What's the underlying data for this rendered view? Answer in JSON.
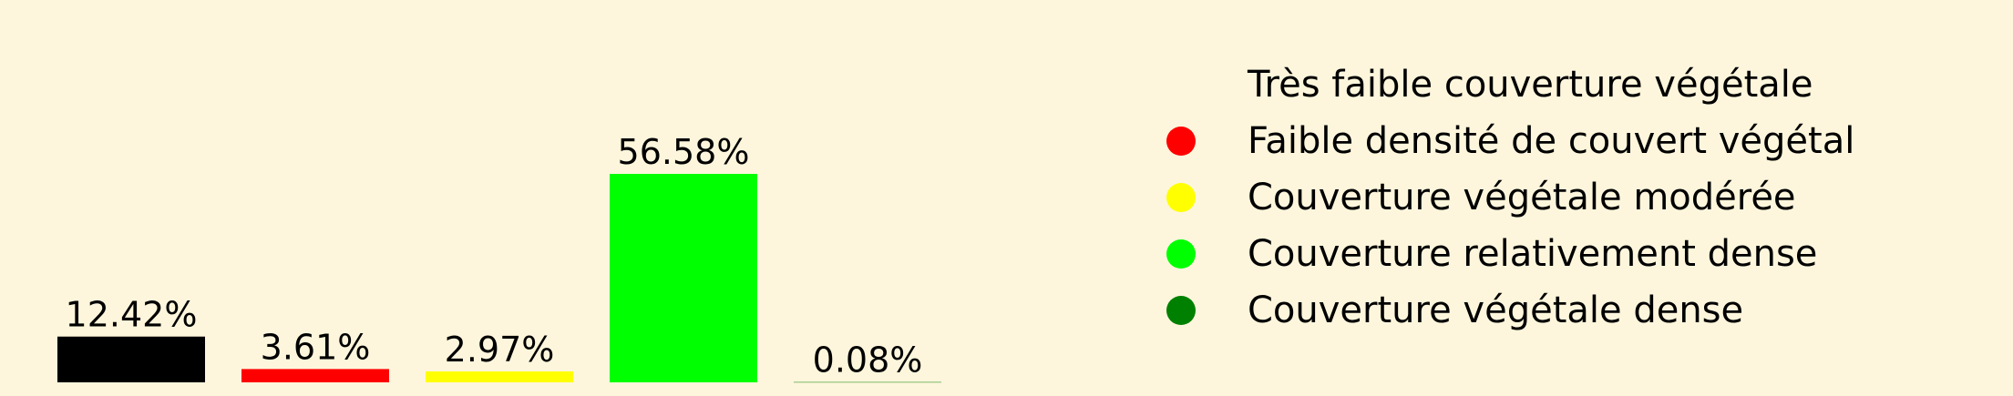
{
  "chart_data": {
    "type": "bar",
    "categories": [
      "Très faible couverture végétale",
      "Faible densité de couvert végétal",
      "Couverture végétale modérée",
      "Couverture relativement dense",
      "Couverture végétale dense"
    ],
    "values": [
      12.42,
      3.61,
      2.97,
      56.58,
      0.08
    ],
    "value_labels": [
      "12.42%",
      "3.61%",
      "2.97%",
      "56.58%",
      "0.08%"
    ],
    "colors": [
      "#000000",
      "#ff0000",
      "#ffff00",
      "#00ff00",
      "#008000"
    ],
    "legend_dot_colors": [
      "#fdf6dc",
      "#ff0000",
      "#ffff00",
      "#00ff00",
      "#008000"
    ],
    "legend_position": "right",
    "ylim": [
      0,
      60
    ],
    "grid": false,
    "background": "#fdf6dc"
  }
}
